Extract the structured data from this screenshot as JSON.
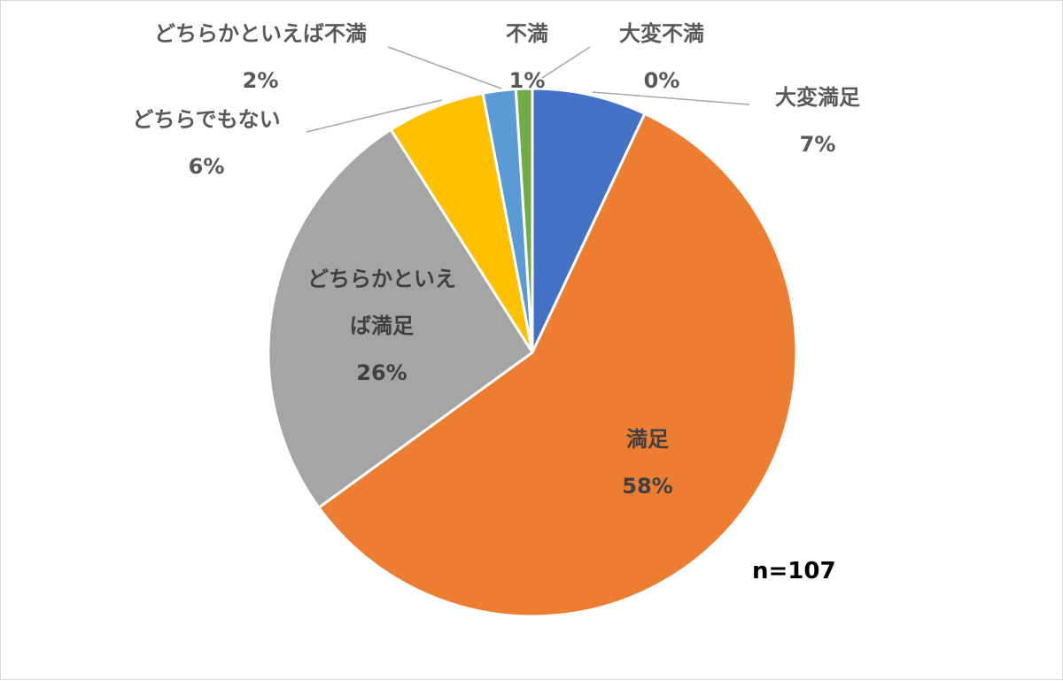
{
  "chart_data": {
    "type": "pie",
    "categories": [
      "大変満足",
      "満足",
      "どちらかといえば満足",
      "どちらでもない",
      "どちらかといえば不満",
      "不満",
      "大変不満"
    ],
    "values": [
      7,
      58,
      26,
      6,
      2,
      1,
      0
    ],
    "value_labels": [
      "7%",
      "58%",
      "26%",
      "6%",
      "2%",
      "1%",
      "0%"
    ],
    "label_lines": [
      [
        "大変満足"
      ],
      [
        "満足"
      ],
      [
        "どちらかといえ",
        "ば満足"
      ],
      [
        "どちらでもない"
      ],
      [
        "どちらかといえば不満"
      ],
      [
        "不満"
      ],
      [
        "大変不満"
      ]
    ],
    "colors": [
      "#4472C4",
      "#ED7D31",
      "#A5A5A5",
      "#FFC000",
      "#5B9BD5",
      "#70AD47",
      "#264478"
    ],
    "start_angle": "12 o'clock",
    "direction": "clockwise",
    "legend": "none",
    "annotation": "n=107"
  }
}
